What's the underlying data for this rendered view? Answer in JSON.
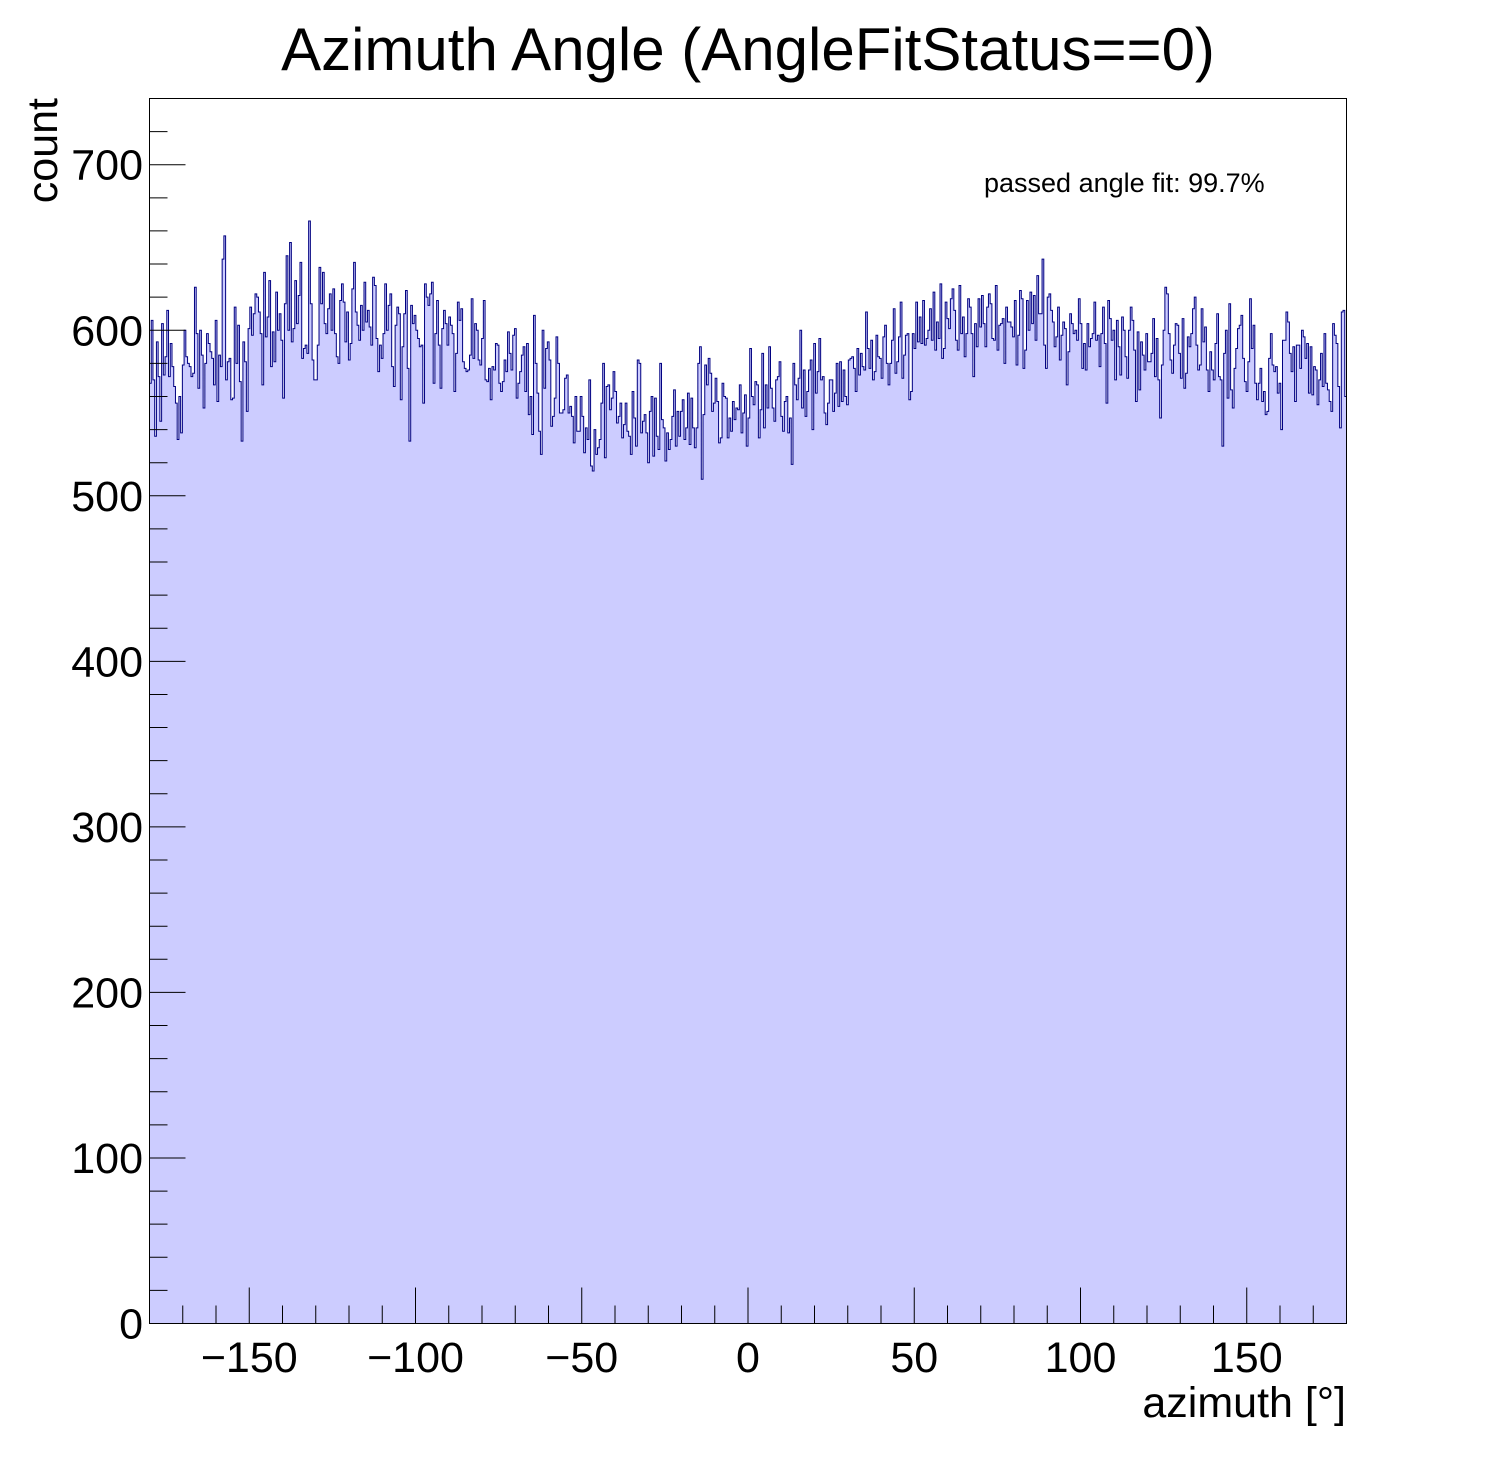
{
  "chart_data": {
    "type": "histogram",
    "title": "Azimuth Angle (AngleFitStatus==0)",
    "xlabel": "azimuth [°]",
    "ylabel": "count",
    "annotation": "passed angle fit: 99.7%",
    "xlim": [
      -180,
      180
    ],
    "ylim": [
      0,
      740
    ],
    "x_ticks": [
      -150,
      -100,
      -50,
      0,
      50,
      100,
      150
    ],
    "x_tick_labels": [
      "−150",
      "−100",
      "−50",
      "0",
      "50",
      "100",
      "150"
    ],
    "y_ticks": [
      0,
      100,
      200,
      300,
      400,
      500,
      600,
      700
    ],
    "y_tick_labels": [
      "0",
      "100",
      "200",
      "300",
      "400",
      "500",
      "600",
      "700"
    ],
    "grid": false,
    "legend": false,
    "fill_color": "#ccccff",
    "line_color": "#000080",
    "bin_width": 0.5,
    "bins_note": "720 bins from -180 to 180, values listed below in order",
    "series": [
      {
        "values": [
          568,
          606,
          570,
          536,
          593,
          572,
          545,
          604,
          573,
          584,
          612,
          572,
          592,
          578,
          566,
          556,
          534,
          560,
          538,
          579,
          600,
          584,
          580,
          578,
          572,
          574,
          626,
          598,
          565,
          600,
          585,
          553,
          580,
          598,
          592,
          587,
          583,
          567,
          606,
          557,
          585,
          578,
          643,
          657,
          570,
          581,
          583,
          558,
          559,
          614,
          580,
          603,
          569,
          533,
          593,
          581,
          551,
          601,
          614,
          597,
          610,
          622,
          620,
          611,
          598,
          567,
          635,
          596,
          608,
          630,
          578,
          599,
          581,
          623,
          600,
          610,
          594,
          559,
          616,
          645,
          600,
          653,
          593,
          601,
          630,
          604,
          621,
          641,
          583,
          589,
          591,
          586,
          666,
          616,
          582,
          570,
          570,
          591,
          638,
          616,
          635,
          604,
          598,
          613,
          622,
          600,
          625,
          598,
          584,
          580,
          618,
          628,
          617,
          593,
          611,
          582,
          592,
          625,
          641,
          611,
          603,
          594,
          615,
          600,
          629,
          605,
          612,
          602,
          591,
          632,
          627,
          595,
          575,
          591,
          583,
          598,
          628,
          600,
          615,
          622,
          578,
          566,
          603,
          614,
          610,
          558,
          590,
          610,
          624,
          577,
          533,
          615,
          604,
          609,
          600,
          595,
          590,
          591,
          556,
          628,
          620,
          615,
          622,
          629,
          568,
          598,
          618,
          591,
          565,
          601,
          612,
          604,
          591,
          608,
          603,
          598,
          563,
          586,
          617,
          606,
          613,
          581,
          577,
          575,
          576,
          585,
          619,
          583,
          604,
          600,
          582,
          579,
          595,
          618,
          570,
          569,
          577,
          558,
          578,
          576,
          592,
          591,
          568,
          563,
          569,
          582,
          575,
          599,
          586,
          576,
          597,
          601,
          559,
          568,
          575,
          585,
          590,
          563,
          592,
          549,
          560,
          537,
          609,
          580,
          562,
          539,
          525,
          600,
          565,
          589,
          593,
          582,
          542,
          548,
          559,
          596,
          580,
          550,
          550,
          552,
          571,
          573,
          550,
          554,
          548,
          532,
          560,
          539,
          539,
          560,
          548,
          526,
          541,
          534,
          570,
          518,
          515,
          540,
          525,
          529,
          534,
          556,
          580,
          523,
          566,
          567,
          552,
          559,
          575,
          563,
          544,
          548,
          556,
          535,
          543,
          556,
          539,
          536,
          525,
          563,
          547,
          530,
          582,
          580,
          538,
          545,
          549,
          538,
          520,
          551,
          560,
          524,
          559,
          536,
          528,
          580,
          546,
          541,
          521,
          538,
          528,
          534,
          548,
          564,
          530,
          551,
          536,
          551,
          558,
          534,
          541,
          562,
          531,
          559,
          541,
          529,
          541,
          580,
          590,
          510,
          549,
          579,
          567,
          583,
          574,
          551,
          556,
          571,
          557,
          532,
          535,
          568,
          560,
          559,
          535,
          547,
          539,
          557,
          546,
          553,
          552,
          567,
          538,
          550,
          561,
          530,
          547,
          589,
          560,
          555,
          569,
          567,
          535,
          552,
          586,
          541,
          567,
          553,
          590,
          565,
          553,
          545,
          570,
          572,
          581,
          548,
          539,
          557,
          560,
          538,
          547,
          519,
          580,
          567,
          558,
          571,
          600,
          553,
          576,
          548,
          563,
          576,
          582,
          540,
          592,
          562,
          575,
          595,
          570,
          572,
          550,
          543,
          556,
          570,
          570,
          551,
          562,
          580,
          554,
          581,
          557,
          576,
          560,
          555,
          582,
          583,
          584,
          577,
          563,
          589,
          573,
          586,
          578,
          576,
          611,
          589,
          577,
          594,
          570,
          575,
          597,
          584,
          583,
          571,
          596,
          603,
          580,
          567,
          580,
          594,
          613,
          574,
          581,
          596,
          617,
          571,
          585,
          597,
          598,
          558,
          563,
          598,
          589,
          617,
          593,
          608,
          592,
          618,
          591,
          595,
          600,
          613,
          594,
          623,
          588,
          605,
          595,
          628,
          583,
          589,
          617,
          607,
          601,
          619,
          625,
          612,
          594,
          588,
          627,
          598,
          608,
          584,
          598,
          619,
          614,
          598,
          572,
          604,
          590,
          619,
          602,
          621,
          604,
          590,
          614,
          622,
          616,
          595,
          594,
          627,
          588,
          603,
          604,
          607,
          580,
          614,
          605,
          605,
          602,
          596,
          618,
          579,
          597,
          624,
          619,
          577,
          588,
          618,
          600,
          623,
          604,
          621,
          594,
          633,
          610,
          610,
          643,
          591,
          577,
          620,
          622,
          612,
          605,
          590,
          596,
          614,
          582,
          597,
          605,
          601,
          567,
          587,
          610,
          604,
          598,
          600,
          594,
          619,
          604,
          577,
          592,
          576,
          604,
          590,
          595,
          598,
          617,
          594,
          597,
          578,
          598,
          614,
          592,
          556,
          618,
          607,
          594,
          600,
          570,
          606,
          590,
          573,
          608,
          600,
          584,
          571,
          600,
          614,
          606,
          588,
          557,
          599,
          564,
          593,
          585,
          576,
          598,
          581,
          581,
          586,
          607,
          572,
          595,
          570,
          547,
          579,
          600,
          626,
          622,
          598,
          582,
          574,
          591,
          604,
          603,
          586,
          571,
          607,
          565,
          574,
          596,
          590,
          598,
          613,
          620,
          591,
          576,
          579,
          613,
          593,
          602,
          576,
          563,
          587,
          576,
          570,
          592,
          610,
          572,
          570,
          530,
          586,
          600,
          559,
          616,
          564,
          553,
          577,
          589,
          601,
          603,
          609,
          583,
          569,
          563,
          581,
          619,
          589,
          603,
          568,
          558,
          568,
          577,
          557,
          563,
          549,
          551,
          583,
          598,
          579,
          575,
          578,
          562,
          568,
          540,
          594,
          594,
          611,
          605,
          586,
          575,
          590,
          557,
          591,
          591,
          577,
          600,
          596,
          583,
          592,
          562,
          590,
          561,
          578,
          576,
          555,
          570,
          586,
          566,
          598,
          568,
          564,
          557,
          551,
          604,
          597,
          592,
          566,
          541,
          611,
          612,
          560
        ]
      }
    ]
  }
}
